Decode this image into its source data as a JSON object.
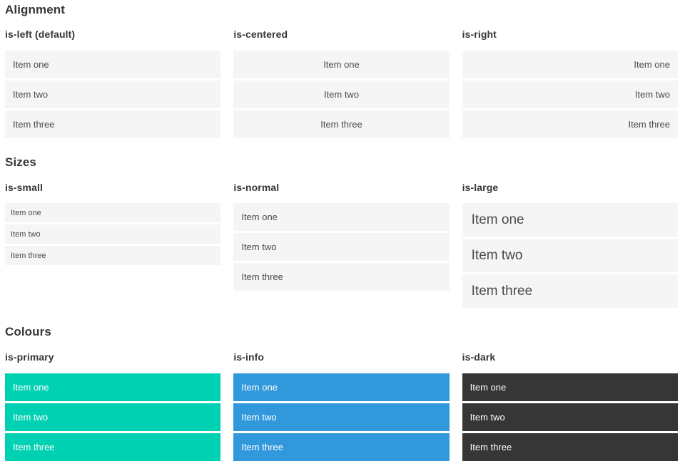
{
  "colors": {
    "primary": "#00d1b2",
    "info": "#3298dc",
    "dark": "#363636",
    "item_bg": "#f5f5f5",
    "heading_text": "#363636",
    "item_text": "#4a4a4a",
    "item_text_light": "#ffffff"
  },
  "sections": [
    {
      "title": "Alignment",
      "columns": [
        {
          "heading": "is-left (default)",
          "items": [
            "Item one",
            "Item two",
            "Item three"
          ]
        },
        {
          "heading": "is-centered",
          "items": [
            "Item one",
            "Item two",
            "Item three"
          ]
        },
        {
          "heading": "is-right",
          "items": [
            "Item one",
            "Item two",
            "Item three"
          ]
        }
      ]
    },
    {
      "title": "Sizes",
      "columns": [
        {
          "heading": "is-small",
          "items": [
            "Item one",
            "Item two",
            "Item three"
          ]
        },
        {
          "heading": "is-normal",
          "items": [
            "Item one",
            "Item two",
            "Item three"
          ]
        },
        {
          "heading": "is-large",
          "items": [
            "Item one",
            "Item two",
            "Item three"
          ]
        }
      ]
    },
    {
      "title": "Colours",
      "columns": [
        {
          "heading": "is-primary",
          "items": [
            "Item one",
            "Item two",
            "Item three"
          ]
        },
        {
          "heading": "is-info",
          "items": [
            "Item one",
            "Item two",
            "Item three"
          ]
        },
        {
          "heading": "is-dark",
          "items": [
            "Item one",
            "Item two",
            "Item three"
          ]
        }
      ]
    }
  ]
}
